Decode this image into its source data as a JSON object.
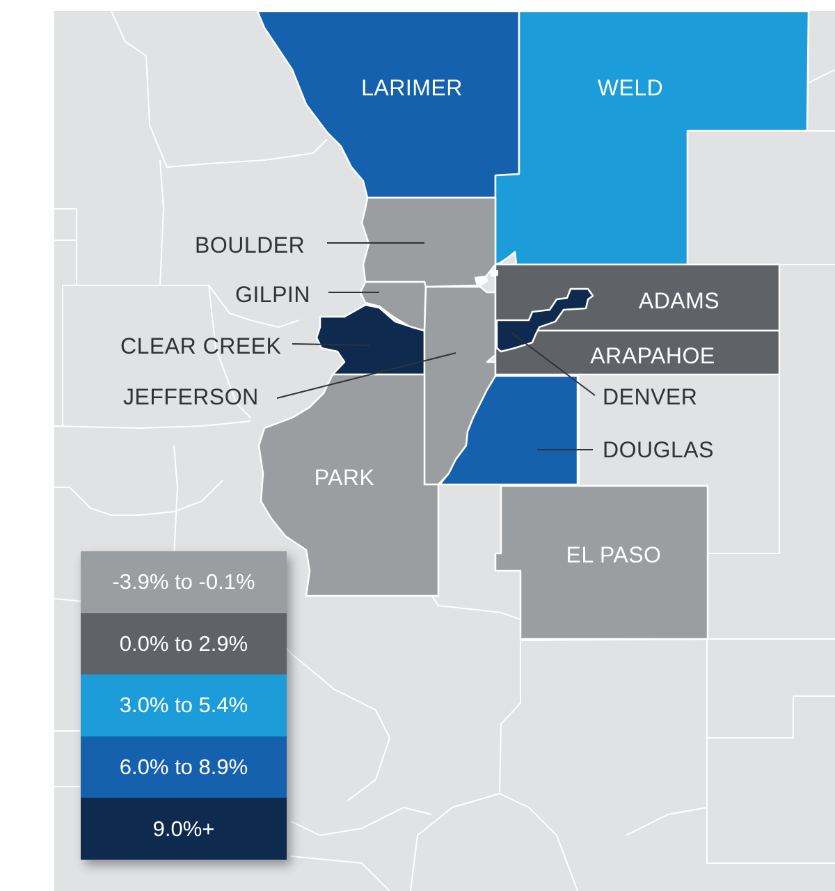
{
  "colors": {
    "background": "#e1e2e3",
    "neg": "#9a9ea1",
    "low": "#5f6368",
    "mid": "#1c9dd9",
    "high": "#1661ae",
    "top": "#0f2a4f"
  },
  "counties": {
    "larimer": {
      "label": "LARIMER",
      "bucket": "high"
    },
    "weld": {
      "label": "WELD",
      "bucket": "mid"
    },
    "boulder": {
      "label": "BOULDER",
      "bucket": "neg"
    },
    "gilpin": {
      "label": "GILPIN",
      "bucket": "neg"
    },
    "clear_creek": {
      "label": "CLEAR CREEK",
      "bucket": "top"
    },
    "jefferson": {
      "label": "JEFFERSON",
      "bucket": "neg"
    },
    "adams": {
      "label": "ADAMS",
      "bucket": "low"
    },
    "arapahoe": {
      "label": "ARAPAHOE",
      "bucket": "low"
    },
    "denver": {
      "label": "DENVER",
      "bucket": "top"
    },
    "douglas": {
      "label": "DOUGLAS",
      "bucket": "high"
    },
    "park": {
      "label": "PARK",
      "bucket": "neg"
    },
    "el_paso": {
      "label": "EL PASO",
      "bucket": "neg"
    }
  },
  "legend": [
    {
      "label": "-3.9% to -0.1%",
      "color": "#9a9ea1"
    },
    {
      "label": "0.0% to 2.9%",
      "color": "#5f6368"
    },
    {
      "label": "3.0% to 5.4%",
      "color": "#1c9dd9"
    },
    {
      "label": "6.0% to 8.9%",
      "color": "#1661ae"
    },
    {
      "label": "9.0%+",
      "color": "#0f2a4f"
    }
  ]
}
